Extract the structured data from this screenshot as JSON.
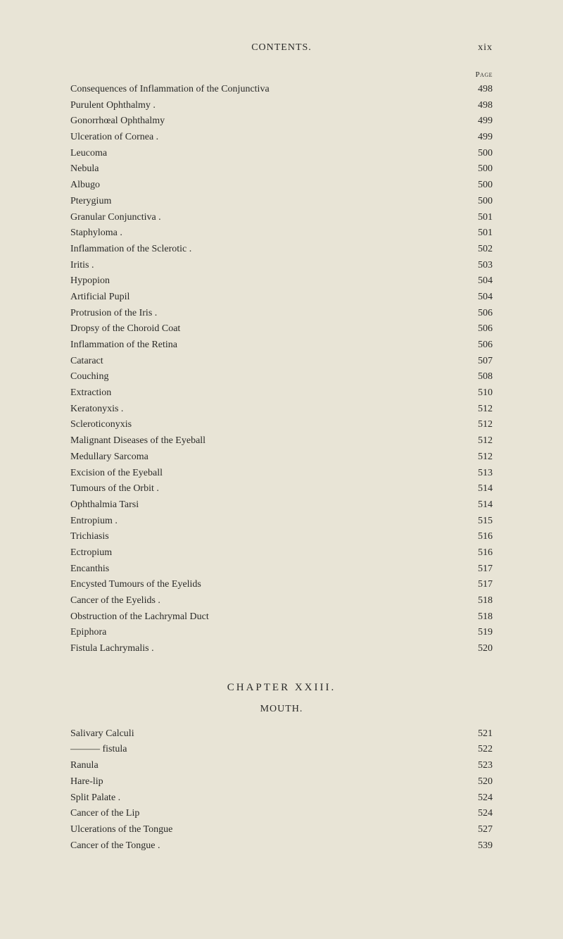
{
  "header": {
    "center": "CONTENTS.",
    "right": "xix"
  },
  "page_label": "Page",
  "entries_top": [
    {
      "title": "Consequences of Inflammation of the Conjunctiva",
      "page": "498",
      "indent": 0
    },
    {
      "title": "Purulent Ophthalmy .",
      "page": "498",
      "indent": 0
    },
    {
      "title": "Gonorrhœal Ophthalmy",
      "page": "499",
      "indent": 0
    },
    {
      "title": "Ulceration of Cornea .",
      "page": "499",
      "indent": 0
    },
    {
      "title": "Leucoma",
      "page": "500",
      "indent": 0
    },
    {
      "title": "Nebula",
      "page": "500",
      "indent": 0
    },
    {
      "title": "Albugo",
      "page": "500",
      "indent": 0
    },
    {
      "title": "Pterygium",
      "page": "500",
      "indent": 0
    },
    {
      "title": "Granular Conjunctiva .",
      "page": "501",
      "indent": 0
    },
    {
      "title": "Staphyloma .",
      "page": "501",
      "indent": 0
    },
    {
      "title": "Inflammation of the Sclerotic .",
      "page": "502",
      "indent": 0
    },
    {
      "title": "Iritis .",
      "page": "503",
      "indent": 0
    },
    {
      "title": "Hypopion",
      "page": "504",
      "indent": 0
    },
    {
      "title": "Artificial Pupil",
      "page": "504",
      "indent": 0
    },
    {
      "title": "Protrusion of the Iris .",
      "page": "506",
      "indent": 0
    },
    {
      "title": "Dropsy of the Choroid Coat",
      "page": "506",
      "indent": 0
    },
    {
      "title": "Inflammation of the Retina",
      "page": "506",
      "indent": 0
    },
    {
      "title": "Cataract",
      "page": "507",
      "indent": 0
    },
    {
      "title": "Couching",
      "page": "508",
      "indent": 0
    },
    {
      "title": "Extraction",
      "page": "510",
      "indent": 0
    },
    {
      "title": "Keratonyxis .",
      "page": "512",
      "indent": 0
    },
    {
      "title": "Scleroticonyxis",
      "page": "512",
      "indent": 0
    },
    {
      "title": "Malignant Diseases of the Eyeball",
      "page": "512",
      "indent": 0
    },
    {
      "title": "Medullary Sarcoma",
      "page": "512",
      "indent": 0
    },
    {
      "title": "Excision of the Eyeball",
      "page": "513",
      "indent": 0
    },
    {
      "title": "Tumours of the Orbit .",
      "page": "514",
      "indent": 0
    },
    {
      "title": "Ophthalmia Tarsi",
      "page": "514",
      "indent": 0
    },
    {
      "title": "Entropium .",
      "page": "515",
      "indent": 0
    },
    {
      "title": "Trichiasis",
      "page": "516",
      "indent": 0
    },
    {
      "title": "Ectropium",
      "page": "516",
      "indent": 0
    },
    {
      "title": "Encanthis",
      "page": "517",
      "indent": 0
    },
    {
      "title": "Encysted Tumours of the Eyelids",
      "page": "517",
      "indent": 0
    },
    {
      "title": "Cancer of the Eyelids .",
      "page": "518",
      "indent": 0
    },
    {
      "title": "Obstruction of the Lachrymal Duct",
      "page": "518",
      "indent": 0
    },
    {
      "title": "Epiphora",
      "page": "519",
      "indent": 0
    },
    {
      "title": "Fistula Lachrymalis .",
      "page": "520",
      "indent": 0
    }
  ],
  "chapter": {
    "heading": "CHAPTER XXIII.",
    "section": "MOUTH."
  },
  "entries_bottom": [
    {
      "title": "Salivary Calculi",
      "page": "521",
      "indent": 0
    },
    {
      "title": "——— fistula",
      "page": "522",
      "indent": 0
    },
    {
      "title": "Ranula",
      "page": "523",
      "indent": 0
    },
    {
      "title": "Hare-lip",
      "page": "520",
      "indent": 0
    },
    {
      "title": "Split Palate .",
      "page": "524",
      "indent": 0
    },
    {
      "title": "Cancer of the Lip",
      "page": "524",
      "indent": 0
    },
    {
      "title": "Ulcerations of the Tongue",
      "page": "527",
      "indent": 0
    },
    {
      "title": "Cancer of the Tongue .",
      "page": "539",
      "indent": 0
    }
  ],
  "style": {
    "background_color": "#e8e4d6",
    "text_color": "#2a2a28",
    "font_family": "Georgia, 'Times New Roman', serif",
    "body_fontsize": 14,
    "header_fontsize": 14,
    "page_label_fontsize": 11,
    "chapter_heading_fontsize": 15,
    "section_heading_fontsize": 14,
    "line_height": 1.55
  }
}
